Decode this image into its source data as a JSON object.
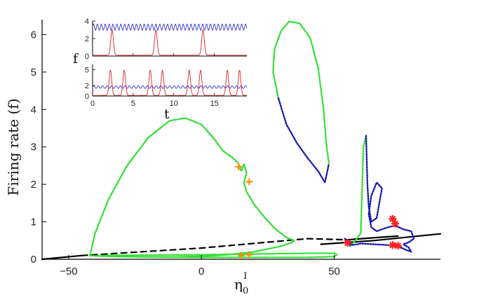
{
  "chart_data": {
    "type": "line",
    "title": "",
    "xlabel": "η0I",
    "xlabel_parts": {
      "base": "η",
      "sub": "0",
      "sup": "I"
    },
    "ylabel": "Firing rate (f)",
    "xlim": [
      -60,
      90
    ],
    "ylim": [
      0,
      6.4
    ],
    "xticks": [
      -50,
      0,
      50
    ],
    "yticks": [
      0,
      1,
      2,
      3,
      4,
      5,
      6
    ],
    "legend": "none",
    "grid": false,
    "colors": {
      "stable_branch": "#000000",
      "unstable_branch": "#000000",
      "green_cycle": "#33dd33",
      "blue_cycle": "#1a1aaa",
      "plus_marker": "#ff8c00",
      "star_marker": "#ff2020",
      "inset_blue": "#3333cc",
      "inset_red": "#dd2222"
    },
    "series": [
      {
        "style": "solid-black",
        "x": [
          -60,
          -45
        ],
        "y": [
          0.0,
          0.1
        ]
      },
      {
        "style": "dashed-black",
        "x": [
          -45,
          0,
          40,
          55
        ],
        "y": [
          0.1,
          0.3,
          0.55,
          0.52
        ]
      },
      {
        "style": "solid-black",
        "x": [
          55,
          66,
          74
        ],
        "y": [
          0.52,
          0.58,
          0.62
        ]
      },
      {
        "style": "solid-black",
        "x": [
          45,
          65,
          90
        ],
        "y": [
          0.4,
          0.5,
          0.68
        ]
      },
      {
        "style": "dotted-green",
        "x": [
          -42,
          -40,
          -35,
          -28,
          -20,
          -12,
          -6,
          0,
          5,
          8,
          12,
          14,
          15,
          16,
          17,
          16,
          17,
          20,
          24,
          28,
          32,
          35,
          34,
          30,
          20,
          10,
          0,
          -10,
          -20,
          -30,
          -40,
          -42
        ],
        "y": [
          0.1,
          0.7,
          1.6,
          2.5,
          3.25,
          3.7,
          3.77,
          3.6,
          3.2,
          2.9,
          2.7,
          2.55,
          2.35,
          2.55,
          2.3,
          2.05,
          1.8,
          1.45,
          1.1,
          0.8,
          0.58,
          0.5,
          0.45,
          0.35,
          0.2,
          0.12,
          0.08,
          0.06,
          0.06,
          0.07,
          0.09,
          0.1
        ]
      },
      {
        "style": "dotted-green",
        "x": [
          -38,
          -20,
          0,
          20,
          40,
          50,
          51,
          50,
          40,
          20,
          0,
          -20,
          -38
        ],
        "y": [
          0.1,
          0.11,
          0.12,
          0.14,
          0.16,
          0.16,
          0.12,
          0.07,
          0.05,
          0.05,
          0.05,
          0.06,
          0.1
        ]
      },
      {
        "style": "dotted-green",
        "x": [
          29,
          27,
          27.5,
          30,
          33,
          37,
          41,
          44,
          46,
          47,
          48
        ],
        "y": [
          4.3,
          5.0,
          5.6,
          6.1,
          6.35,
          6.3,
          5.9,
          5.1,
          4.0,
          3.1,
          2.55
        ]
      },
      {
        "style": "dotted-blue",
        "x": [
          29,
          32,
          36,
          40,
          44,
          46.5,
          48
        ],
        "y": [
          4.3,
          3.6,
          3.1,
          2.7,
          2.35,
          2.05,
          2.55
        ]
      },
      {
        "style": "dotted-green",
        "x": [
          56,
          58,
          60,
          61,
          62
        ],
        "y": [
          0.35,
          0.5,
          0.7,
          3.0,
          3.3
        ]
      },
      {
        "style": "dotted-blue",
        "x": [
          62,
          62.5,
          63,
          64,
          66,
          67,
          68,
          66,
          64,
          63,
          64,
          66,
          70,
          73,
          76,
          79,
          80,
          78,
          76,
          78,
          79,
          77,
          74,
          70,
          65,
          60,
          57,
          55,
          54,
          56
        ],
        "y": [
          3.3,
          2.0,
          1.4,
          1.0,
          1.1,
          1.5,
          1.9,
          2.05,
          1.7,
          1.2,
          0.85,
          0.75,
          0.85,
          0.9,
          0.8,
          0.75,
          0.55,
          0.45,
          0.4,
          0.32,
          0.2,
          0.25,
          0.35,
          0.38,
          0.4,
          0.42,
          0.38,
          0.45,
          0.55,
          0.35
        ]
      },
      {
        "style": "marker-plus",
        "points": [
          [
            14,
            2.47
          ],
          [
            18,
            2.07
          ],
          [
            15,
            0.1
          ],
          [
            18,
            0.12
          ]
        ]
      },
      {
        "style": "marker-star",
        "points": [
          [
            55,
            0.44
          ],
          [
            72,
            1.08
          ],
          [
            73,
            0.95
          ],
          [
            72,
            0.38
          ],
          [
            74,
            0.36
          ]
        ]
      }
    ],
    "inset": {
      "ylabel": "f",
      "xlabel": "t",
      "xlim": [
        0,
        19
      ],
      "xticks": [
        0,
        5,
        10,
        15
      ],
      "top": {
        "yticks": [
          0,
          2,
          4
        ],
        "ylim": [
          0,
          4
        ],
        "blue_level": 3.3,
        "blue_amp": 0.35,
        "blue_period": 0.48,
        "red_spikes": [
          2.4,
          7.8,
          13.6
        ],
        "red_peak": 2.9,
        "red_base": 0.1
      },
      "bottom": {
        "yticks": [
          0,
          2,
          5
        ],
        "ylim": [
          0,
          6
        ],
        "blue_level": 1.7,
        "blue_amp": 0.25,
        "blue_period": 0.55,
        "red_spikes": [
          2.2,
          3.9,
          7.1,
          8.6,
          11.9,
          13.3,
          16.6,
          18.1
        ],
        "red_peak": 4.8,
        "red_base": 0.1
      }
    }
  }
}
